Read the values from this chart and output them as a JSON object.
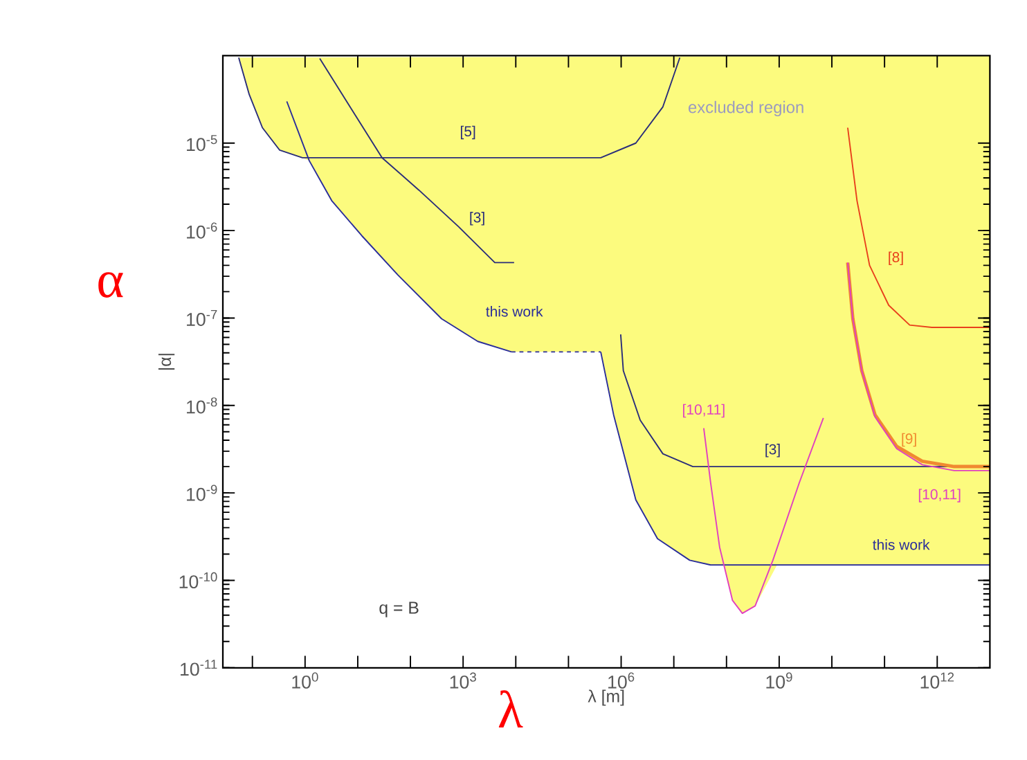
{
  "chart_data": {
    "type": "line",
    "xlabel": "λ [m]",
    "ylabel": "|α|",
    "log": "xy",
    "xlim": [
      0.0275,
      10000000000000.0
    ],
    "ylim": [
      1e-11,
      0.0001
    ],
    "xticks": [
      {
        "value": 0.1,
        "label": null
      },
      {
        "value": 1,
        "label": "10$^{0}$"
      },
      {
        "value": 10,
        "label": null
      },
      {
        "value": 100,
        "label": null
      },
      {
        "value": 1000,
        "label": "10$^{3}$"
      },
      {
        "value": 10000.0,
        "label": null
      },
      {
        "value": 100000.0,
        "label": null
      },
      {
        "value": 1000000.0,
        "label": "10$^{6}$"
      },
      {
        "value": 10000000.0,
        "label": null
      },
      {
        "value": 100000000.0,
        "label": null
      },
      {
        "value": 1000000000.0,
        "label": "10$^{9}$"
      },
      {
        "value": 10000000000.0,
        "label": null
      },
      {
        "value": 100000000000.0,
        "label": null
      },
      {
        "value": 1000000000000.0,
        "label": "10$^{12}$"
      }
    ],
    "yticks": [
      {
        "value": 1e-11,
        "label": "10$^{-11}$"
      },
      {
        "value": 1e-10,
        "label": "10$^{-10}$"
      },
      {
        "value": 1e-09,
        "label": "10$^{-9}$"
      },
      {
        "value": 1e-08,
        "label": "10$^{-8}$"
      },
      {
        "value": 1e-07,
        "label": "10$^{-7}$"
      },
      {
        "value": 1e-06,
        "label": "10$^{-6}$"
      },
      {
        "value": 1e-05,
        "label": "10$^{-5}$"
      }
    ],
    "annotations": [
      "excluded region",
      "q = B",
      "α",
      "λ"
    ],
    "series": [
      {
        "type": "area",
        "color": "#fcfb7e",
        "x": [
          0.055,
          0.087,
          0.155,
          0.33,
          0.89,
          1.2,
          3.2,
          12,
          58,
          390,
          1900,
          8300,
          410000.0,
          720000.0,
          1900000.0,
          4900000.0,
          20000000.0,
          50000000.0,
          89000000.0,
          130000000.0,
          200000000.0,
          350000000.0,
          910000000.0,
          10000000000000.0,
          10000000000000.0
        ],
        "values": [
          9.5e-05,
          3.6e-05,
          1.5e-05,
          8.3e-06,
          6.8e-06,
          6.3e-06,
          2.2e-06,
          8.7e-07,
          3.1e-07,
          9.8e-08,
          5.4e-08,
          4.1e-08,
          4.1e-08,
          7.8e-09,
          8.3e-10,
          3e-10,
          1.7e-10,
          1.5e-10,
          1.5e-10,
          5.9e-11,
          4.2e-11,
          5.1e-11,
          1.5e-10,
          1.5e-10,
          0.0001
        ]
      },
      {
        "name": "[5]",
        "color": "#2a2d7a",
        "x": [
          0.055,
          0.087,
          0.155,
          0.33,
          0.89,
          410000.0,
          1900000.0,
          6200000.0,
          13000000.0
        ],
        "values": [
          9.5e-05,
          3.6e-05,
          1.5e-05,
          8.3e-06,
          6.8e-06,
          6.8e-06,
          1e-05,
          2.6e-05,
          9.5e-05
        ]
      },
      {
        "name": "[3]",
        "color": "#2a2d7a",
        "x": [
          1.9,
          8.1,
          29,
          145,
          830,
          4000,
          9300
        ],
        "values": [
          9.3e-05,
          2.3e-05,
          6.8e-06,
          2.9e-06,
          1.1e-06,
          4.3e-07,
          4.3e-07
        ]
      },
      {
        "name": "this work",
        "color": "#2a2d9a",
        "x": [
          0.45,
          1.2,
          3.2,
          12,
          58,
          390,
          1900,
          8300
        ],
        "values": [
          3e-05,
          6.3e-06,
          2.2e-06,
          8.7e-07,
          3.1e-07,
          9.8e-08,
          5.4e-08,
          4.1e-08
        ]
      },
      {
        "color": "#2a2d9a",
        "line_style": "dashed",
        "x": [
          8300,
          410000.0
        ],
        "values": [
          4.1e-08,
          4.1e-08
        ]
      },
      {
        "name": "this work",
        "color": "#2a2d9a",
        "x": [
          410000.0,
          720000.0,
          1900000.0,
          4900000.0,
          20000000.0,
          50000000.0,
          10000000000000.0
        ],
        "values": [
          4.1e-08,
          7.8e-09,
          8.3e-10,
          3e-10,
          1.7e-10,
          1.5e-10,
          1.5e-10
        ]
      },
      {
        "name": "[3]",
        "color": "#2a2d7a",
        "x": [
          980000.0,
          1100000.0,
          2300000.0,
          6200000.0,
          23000000.0,
          10000000000000.0
        ],
        "values": [
          6.5e-08,
          2.5e-08,
          6.8e-09,
          2.8e-09,
          2e-09,
          2e-09
        ]
      },
      {
        "name": "[10,11]",
        "color": "#e040c0",
        "x": [
          37000000.0,
          50000000.0,
          74000000.0,
          130000000.0,
          200000000.0,
          350000000.0,
          760000000.0,
          2400000000.0,
          6900000000.0
        ],
        "values": [
          5.5e-09,
          1.3e-09,
          2.4e-10,
          5.9e-11,
          4.2e-11,
          5.1e-11,
          1.7e-10,
          1.3e-09,
          7.2e-09
        ]
      },
      {
        "name": "[8]",
        "color": "#e8401c",
        "x": [
          20000000000.0,
          30000000000.0,
          52000000000.0,
          120000000000.0,
          300000000000.0,
          790000000000.0,
          10000000000000.0
        ],
        "values": [
          1.5e-05,
          2.2e-06,
          4e-07,
          1.4e-07,
          8.3e-08,
          7.8e-08,
          7.8e-08
        ]
      },
      {
        "name": "[9]",
        "color": "#f08a30",
        "x": [
          20000000000.0,
          25000000000.0,
          37000000000.0,
          66000000000.0,
          170000000000.0,
          520000000000.0,
          2100000000000.0,
          10000000000000.0
        ],
        "values": [
          4.3e-07,
          9.8e-08,
          2.5e-08,
          7.8e-09,
          3.4e-09,
          2.3e-09,
          2e-09,
          2e-09
        ]
      },
      {
        "name": "[10,11]",
        "color": "#e040c0",
        "x": [
          20000000000.0,
          25000000000.0,
          37000000000.0,
          66000000000.0,
          170000000000.0,
          520000000000.0,
          2100000000000.0,
          10000000000000.0
        ],
        "values": [
          4.3e-07,
          9.8e-08,
          2.5e-08,
          7.4e-09,
          3.2e-09,
          2.1e-09,
          1.8e-09,
          1.8e-09
        ]
      }
    ]
  }
}
